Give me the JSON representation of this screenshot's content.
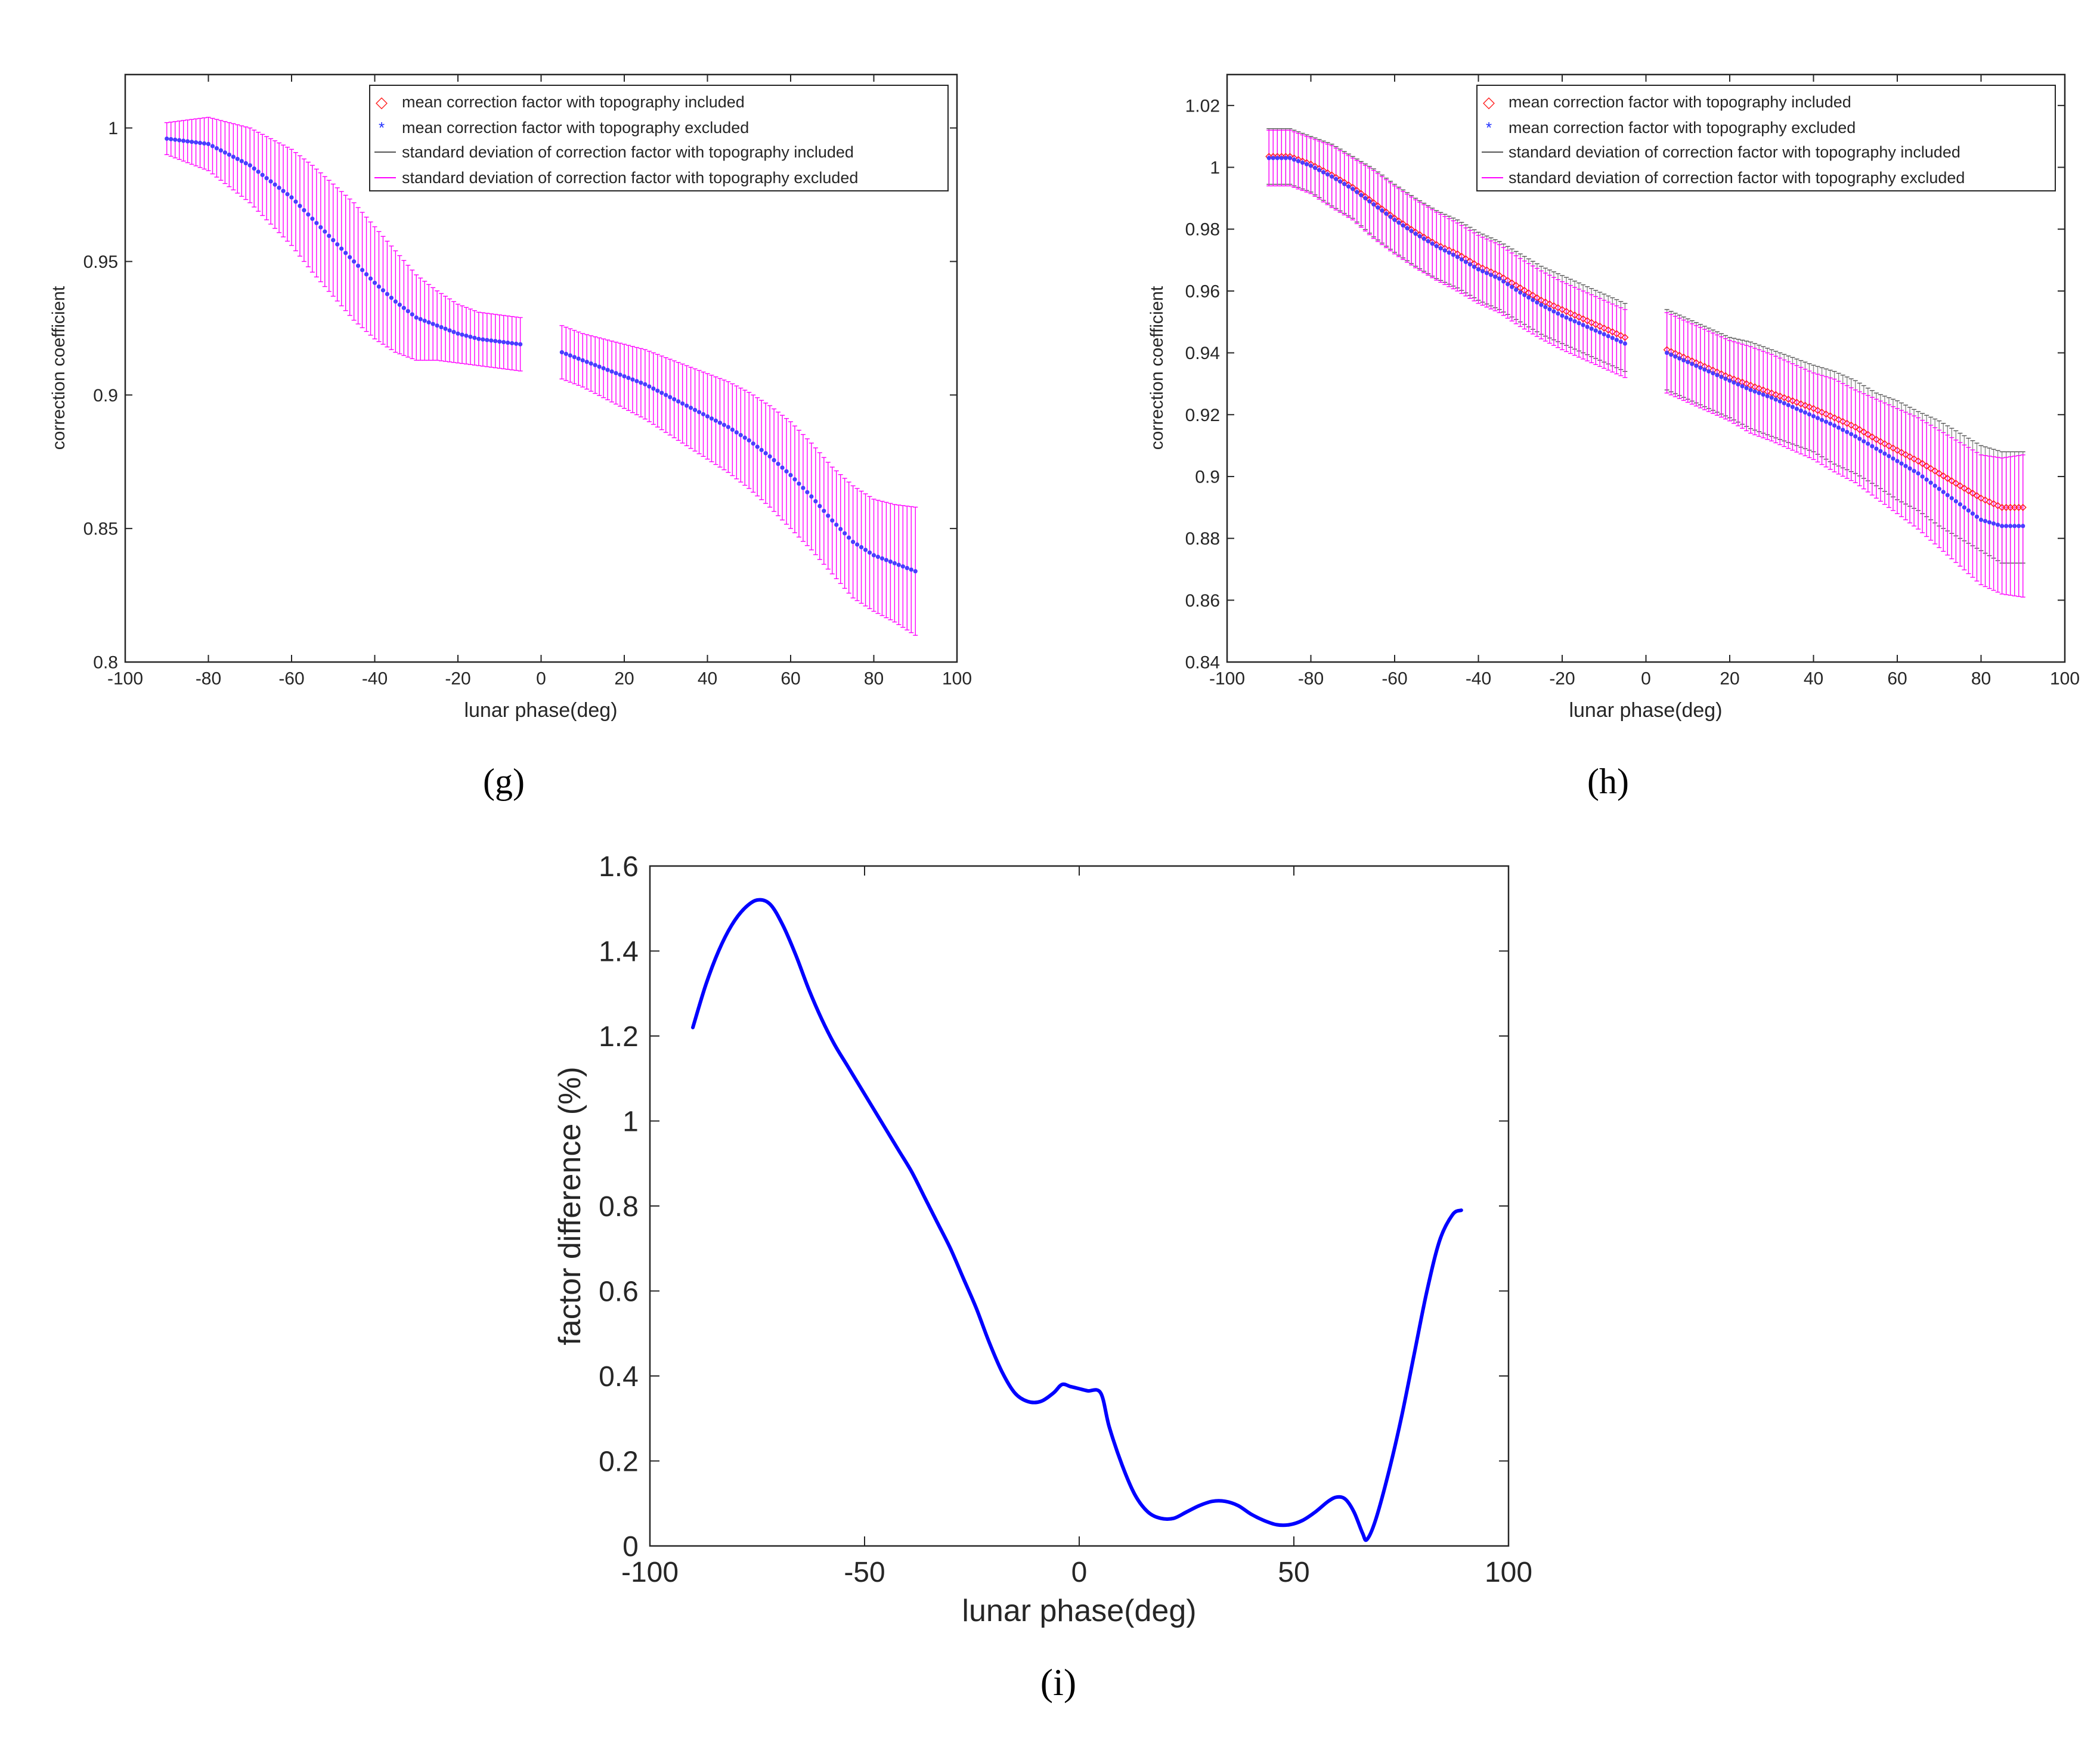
{
  "chart_data": [
    {
      "id": "g",
      "type": "line",
      "panel_label": "(g)",
      "xlabel": "lunar phase(deg)",
      "ylabel": "correction coefficient",
      "xlim": [
        -100,
        100
      ],
      "ylim": [
        0.8,
        1.02
      ],
      "xticks": [
        -100,
        -80,
        -60,
        -40,
        -20,
        0,
        20,
        40,
        60,
        80,
        100
      ],
      "xtick_labels": [
        "-100",
        "-80",
        "-60",
        "-40",
        "-20",
        "0",
        "20",
        "40",
        "60",
        "80",
        "100"
      ],
      "yticks": [
        0.8,
        0.85,
        0.9,
        0.95,
        1
      ],
      "ytick_labels": [
        "0.8",
        "0.85",
        "0.9",
        "0.95",
        "1"
      ],
      "legend": {
        "position": "top-right",
        "entries": [
          {
            "label": "mean correction factor with topography included",
            "marker": "diamond",
            "color": "#ff2020"
          },
          {
            "label": "mean correction factor with topography excluded",
            "marker": "star",
            "color": "#2030ff"
          },
          {
            "label": "standard deviation of correction factor with topography included",
            "marker": "line",
            "color": "#555555"
          },
          {
            "label": "standard deviation of correction factor with topography excluded",
            "marker": "line",
            "color": "#ff00ff"
          }
        ]
      },
      "series": [
        {
          "name": "mean correction factor with topography excluded",
          "x": [
            -90,
            -85,
            -80,
            -75,
            -70,
            -65,
            -60,
            -55,
            -50,
            -45,
            -40,
            -35,
            -30,
            -25,
            -20,
            -15,
            -10,
            -5,
            5,
            10,
            15,
            20,
            25,
            30,
            35,
            40,
            45,
            50,
            55,
            60,
            65,
            70,
            75,
            80,
            85,
            90
          ],
          "mean": [
            0.996,
            0.995,
            0.994,
            0.99,
            0.986,
            0.98,
            0.974,
            0.966,
            0.958,
            0.95,
            0.942,
            0.935,
            0.929,
            0.926,
            0.923,
            0.921,
            0.92,
            0.919,
            0.916,
            0.913,
            0.91,
            0.907,
            0.904,
            0.9,
            0.896,
            0.892,
            0.888,
            0.883,
            0.877,
            0.87,
            0.862,
            0.853,
            0.845,
            0.84,
            0.837,
            0.834
          ],
          "std": [
            0.006,
            0.008,
            0.01,
            0.012,
            0.014,
            0.016,
            0.018,
            0.02,
            0.021,
            0.022,
            0.021,
            0.019,
            0.016,
            0.013,
            0.011,
            0.01,
            0.01,
            0.01,
            0.01,
            0.01,
            0.011,
            0.012,
            0.013,
            0.014,
            0.015,
            0.016,
            0.017,
            0.018,
            0.019,
            0.02,
            0.02,
            0.02,
            0.021,
            0.021,
            0.022,
            0.024
          ]
        }
      ],
      "included_matches_excluded": true
    },
    {
      "id": "h",
      "type": "line",
      "panel_label": "(h)",
      "xlabel": "lunar phase(deg)",
      "ylabel": "correction coefficient",
      "xlim": [
        -100,
        100
      ],
      "ylim": [
        0.84,
        1.03
      ],
      "xticks": [
        -100,
        -80,
        -60,
        -40,
        -20,
        0,
        20,
        40,
        60,
        80,
        100
      ],
      "xtick_labels": [
        "-100",
        "-80",
        "-60",
        "-40",
        "-20",
        "0",
        "20",
        "40",
        "60",
        "80",
        "100"
      ],
      "yticks": [
        0.84,
        0.86,
        0.88,
        0.9,
        0.92,
        0.94,
        0.96,
        0.98,
        1,
        1.02
      ],
      "ytick_labels": [
        "0.84",
        "0.86",
        "0.88",
        "0.9",
        "0.92",
        "0.94",
        "0.96",
        "0.98",
        "1",
        "1.02"
      ],
      "legend": {
        "position": "top-right",
        "entries": [
          {
            "label": "mean correction factor with topography included",
            "marker": "diamond",
            "color": "#ff2020"
          },
          {
            "label": "mean correction factor with topography excluded",
            "marker": "star",
            "color": "#2030ff"
          },
          {
            "label": "standard deviation of correction factor with topography included",
            "marker": "line",
            "color": "#555555"
          },
          {
            "label": "standard deviation of correction factor with topography excluded",
            "marker": "line",
            "color": "#ff00ff"
          }
        ]
      },
      "series": [
        {
          "name": "mean correction factor with topography included",
          "x": [
            -90,
            -85,
            -80,
            -75,
            -70,
            -65,
            -60,
            -55,
            -50,
            -45,
            -40,
            -35,
            -30,
            -25,
            -20,
            -15,
            -10,
            -5,
            5,
            10,
            15,
            20,
            25,
            30,
            35,
            40,
            45,
            50,
            55,
            60,
            65,
            70,
            75,
            80,
            85,
            90
          ],
          "mean": [
            1.0035,
            1.0035,
            1.001,
            0.9975,
            0.9935,
            0.9885,
            0.9835,
            0.979,
            0.975,
            0.972,
            0.968,
            0.965,
            0.961,
            0.957,
            0.954,
            0.951,
            0.948,
            0.945,
            0.941,
            0.938,
            0.935,
            0.932,
            0.9295,
            0.927,
            0.9245,
            0.922,
            0.919,
            0.916,
            0.912,
            0.9085,
            0.905,
            0.901,
            0.897,
            0.893,
            0.89,
            0.89
          ],
          "std": [
            0.009,
            0.009,
            0.009,
            0.01,
            0.01,
            0.011,
            0.011,
            0.011,
            0.011,
            0.011,
            0.011,
            0.011,
            0.011,
            0.011,
            0.011,
            0.011,
            0.011,
            0.011,
            0.013,
            0.013,
            0.013,
            0.013,
            0.014,
            0.014,
            0.014,
            0.014,
            0.015,
            0.015,
            0.015,
            0.016,
            0.016,
            0.017,
            0.017,
            0.017,
            0.018,
            0.018
          ]
        },
        {
          "name": "mean correction factor with topography excluded",
          "x": [
            -90,
            -85,
            -80,
            -75,
            -70,
            -65,
            -60,
            -55,
            -50,
            -45,
            -40,
            -35,
            -30,
            -25,
            -20,
            -15,
            -10,
            -5,
            5,
            10,
            15,
            20,
            25,
            30,
            35,
            40,
            45,
            50,
            55,
            60,
            65,
            70,
            75,
            80,
            85,
            90
          ],
          "mean": [
            1.003,
            1.003,
            1.0005,
            0.997,
            0.993,
            0.988,
            0.983,
            0.9785,
            0.9745,
            0.971,
            0.967,
            0.964,
            0.9595,
            0.9555,
            0.952,
            0.949,
            0.946,
            0.943,
            0.94,
            0.937,
            0.934,
            0.931,
            0.928,
            0.9255,
            0.9225,
            0.9195,
            0.9165,
            0.913,
            0.909,
            0.905,
            0.901,
            0.896,
            0.891,
            0.886,
            0.884,
            0.884
          ],
          "std": [
            0.009,
            0.009,
            0.009,
            0.01,
            0.01,
            0.011,
            0.011,
            0.011,
            0.011,
            0.011,
            0.011,
            0.011,
            0.011,
            0.011,
            0.011,
            0.011,
            0.011,
            0.011,
            0.013,
            0.013,
            0.013,
            0.013,
            0.014,
            0.014,
            0.014,
            0.014,
            0.015,
            0.015,
            0.016,
            0.017,
            0.018,
            0.019,
            0.02,
            0.021,
            0.022,
            0.023
          ]
        }
      ]
    },
    {
      "id": "i",
      "type": "line",
      "panel_label": "(i)",
      "xlabel": "lunar phase(deg)",
      "ylabel": "factor difference (%)",
      "xlim": [
        -100,
        100
      ],
      "ylim": [
        0,
        1.6
      ],
      "xticks": [
        -100,
        -50,
        0,
        50,
        100
      ],
      "xtick_labels": [
        "-100",
        "-50",
        "0",
        "50",
        "100"
      ],
      "yticks": [
        0,
        0.2,
        0.4,
        0.6,
        0.8,
        1,
        1.2,
        1.4,
        1.6
      ],
      "ytick_labels": [
        "0",
        "0.2",
        "0.4",
        "0.6",
        "0.8",
        "1",
        "1.2",
        "1.4",
        "1.6"
      ],
      "series": [
        {
          "name": "factor difference",
          "color": "#0000ff",
          "x": [
            -90,
            -87,
            -84,
            -81,
            -78,
            -75,
            -72,
            -69,
            -66,
            -63,
            -60,
            -57,
            -54,
            -51,
            -48,
            -45,
            -42,
            -39,
            -36,
            -33,
            -30,
            -27,
            -24,
            -21,
            -18,
            -15,
            -12,
            -9,
            -6,
            -4,
            -2,
            0,
            2,
            5,
            7,
            10,
            13,
            16,
            19,
            22,
            25,
            28,
            31,
            34,
            37,
            40,
            43,
            46,
            49,
            52,
            55,
            58,
            60,
            62,
            64,
            66,
            67,
            69,
            72,
            75,
            78,
            81,
            84,
            87,
            89
          ],
          "y": [
            1.22,
            1.32,
            1.4,
            1.46,
            1.5,
            1.52,
            1.51,
            1.46,
            1.39,
            1.31,
            1.24,
            1.18,
            1.13,
            1.08,
            1.03,
            0.98,
            0.93,
            0.88,
            0.82,
            0.76,
            0.7,
            0.63,
            0.56,
            0.48,
            0.41,
            0.36,
            0.34,
            0.34,
            0.36,
            0.38,
            0.375,
            0.37,
            0.365,
            0.36,
            0.28,
            0.19,
            0.12,
            0.08,
            0.065,
            0.065,
            0.08,
            0.095,
            0.105,
            0.105,
            0.095,
            0.075,
            0.06,
            0.05,
            0.05,
            0.06,
            0.08,
            0.105,
            0.115,
            0.11,
            0.08,
            0.03,
            0.015,
            0.06,
            0.17,
            0.3,
            0.45,
            0.6,
            0.72,
            0.78,
            0.79
          ]
        }
      ]
    }
  ]
}
